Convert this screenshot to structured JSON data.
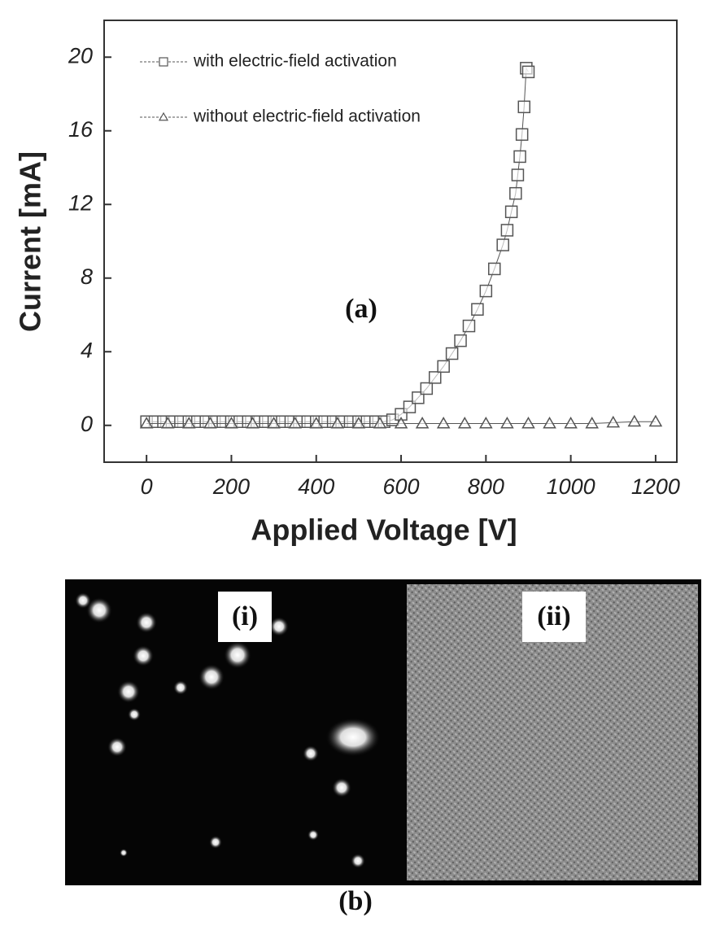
{
  "chart_data": {
    "type": "scatter",
    "annotation": "(a)",
    "x_label": "Applied Voltage [V]",
    "y_label": "Current [mA]",
    "xlim": [
      -100,
      1250
    ],
    "ylim": [
      -2,
      22
    ],
    "xticks": [
      0,
      200,
      400,
      600,
      800,
      1000,
      1200
    ],
    "yticks": [
      0,
      4,
      8,
      12,
      16,
      20
    ],
    "legend": "upper left",
    "series": [
      {
        "name": "with electric-field activation",
        "marker": "square",
        "color": "#555555",
        "x": [
          0,
          20,
          40,
          60,
          80,
          100,
          120,
          140,
          160,
          180,
          200,
          220,
          240,
          260,
          280,
          300,
          320,
          340,
          360,
          380,
          400,
          420,
          440,
          460,
          480,
          500,
          520,
          540,
          560,
          580,
          600,
          620,
          640,
          660,
          680,
          700,
          720,
          740,
          760,
          780,
          800,
          820,
          840,
          850,
          860,
          870,
          875,
          880,
          885,
          890,
          895,
          900
        ],
        "values": [
          0.2,
          0.2,
          0.2,
          0.2,
          0.2,
          0.2,
          0.2,
          0.2,
          0.2,
          0.2,
          0.2,
          0.2,
          0.2,
          0.2,
          0.2,
          0.2,
          0.2,
          0.2,
          0.2,
          0.2,
          0.2,
          0.2,
          0.2,
          0.2,
          0.2,
          0.2,
          0.2,
          0.2,
          0.2,
          0.3,
          0.6,
          1.0,
          1.5,
          2.0,
          2.6,
          3.2,
          3.9,
          4.6,
          5.4,
          6.3,
          7.3,
          8.5,
          9.8,
          10.6,
          11.6,
          12.6,
          13.6,
          14.6,
          15.8,
          17.3,
          19.4,
          19.2
        ]
      },
      {
        "name": "without electric-field activation",
        "marker": "triangle",
        "color": "#555555",
        "x": [
          0,
          50,
          100,
          150,
          200,
          250,
          300,
          350,
          400,
          450,
          500,
          550,
          600,
          650,
          700,
          750,
          800,
          850,
          900,
          950,
          1000,
          1050,
          1100,
          1150,
          1200
        ],
        "values": [
          0.1,
          0.1,
          0.1,
          0.1,
          0.1,
          0.1,
          0.1,
          0.1,
          0.1,
          0.1,
          0.1,
          0.1,
          0.1,
          0.1,
          0.1,
          0.1,
          0.1,
          0.1,
          0.1,
          0.1,
          0.1,
          0.1,
          0.15,
          0.2,
          0.2
        ]
      }
    ]
  },
  "figure_b": {
    "label": "(b)",
    "images": [
      {
        "label": "(i)"
      },
      {
        "label": "(ii)"
      }
    ]
  }
}
